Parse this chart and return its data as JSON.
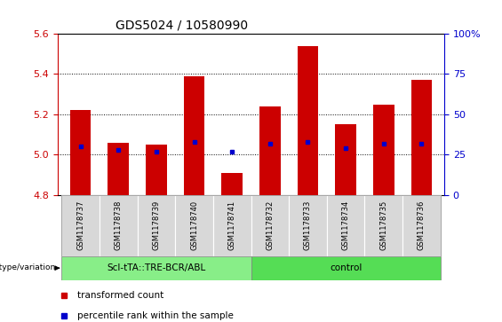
{
  "title": "GDS5024 / 10580990",
  "samples": [
    "GSM1178737",
    "GSM1178738",
    "GSM1178739",
    "GSM1178740",
    "GSM1178741",
    "GSM1178732",
    "GSM1178733",
    "GSM1178734",
    "GSM1178735",
    "GSM1178736"
  ],
  "transformed_counts": [
    5.22,
    5.06,
    5.05,
    5.39,
    4.91,
    5.24,
    5.54,
    5.15,
    5.25,
    5.37
  ],
  "percentile_ranks": [
    30,
    28,
    27,
    33,
    27,
    32,
    33,
    29,
    32,
    32
  ],
  "ylim_left": [
    4.8,
    5.6
  ],
  "ylim_right": [
    0,
    100
  ],
  "yticks_left": [
    4.8,
    5.0,
    5.2,
    5.4,
    5.6
  ],
  "yticks_right": [
    0,
    25,
    50,
    75,
    100
  ],
  "ytick_labels_right": [
    "0",
    "25",
    "50",
    "75",
    "100%"
  ],
  "bar_bottom": 4.8,
  "bar_color": "#cc0000",
  "dot_color": "#0000cc",
  "groups": [
    {
      "label": "ScI-tTA::TRE-BCR/ABL",
      "indices": [
        0,
        1,
        2,
        3,
        4
      ],
      "color": "#88ee88"
    },
    {
      "label": "control",
      "indices": [
        5,
        6,
        7,
        8,
        9
      ],
      "color": "#55dd55"
    }
  ],
  "group_row_label": "genotype/variation",
  "legend_items": [
    {
      "label": "transformed count",
      "color": "#cc0000",
      "marker": "s"
    },
    {
      "label": "percentile rank within the sample",
      "color": "#0000cc",
      "marker": "s"
    }
  ],
  "tick_color_left": "#cc0000",
  "tick_color_right": "#0000cc",
  "sample_bg_color": "#d8d8d8",
  "plot_bg": "#ffffff"
}
